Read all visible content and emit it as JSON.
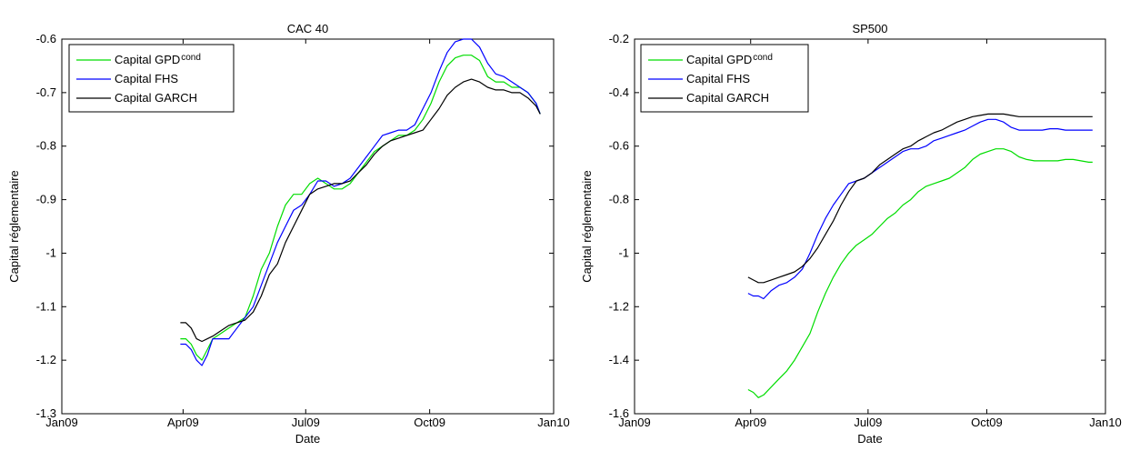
{
  "chart_data": [
    {
      "type": "line",
      "title": "CAC 40",
      "xlabel": "Date",
      "ylabel": "Capital réglementaire",
      "xlim": [
        0,
        365
      ],
      "ylim": [
        -1.3,
        -0.6
      ],
      "x_ticks": [
        {
          "value": 0,
          "label": "Jan09"
        },
        {
          "value": 90,
          "label": "Apr09"
        },
        {
          "value": 181,
          "label": "Jul09"
        },
        {
          "value": 273,
          "label": "Oct09"
        },
        {
          "value": 365,
          "label": "Jan10"
        }
      ],
      "y_ticks": [
        {
          "value": -0.6,
          "label": "-0.6"
        },
        {
          "value": -0.7,
          "label": "-0.7"
        },
        {
          "value": -0.8,
          "label": "-0.8"
        },
        {
          "value": -0.9,
          "label": "-0.9"
        },
        {
          "value": -1.0,
          "label": "-1"
        },
        {
          "value": -1.1,
          "label": "-1.1"
        },
        {
          "value": -1.2,
          "label": "-1.2"
        },
        {
          "value": -1.3,
          "label": "-1.3"
        }
      ],
      "legend": {
        "placement": "top-left"
      },
      "series": [
        {
          "name": "Capital GPD",
          "name_sup": "cond",
          "color": "#00dd00",
          "x": [
            88,
            92,
            96,
            100,
            104,
            108,
            112,
            118,
            124,
            130,
            136,
            142,
            148,
            154,
            160,
            166,
            172,
            178,
            184,
            190,
            196,
            202,
            208,
            214,
            220,
            226,
            232,
            238,
            244,
            250,
            256,
            262,
            268,
            274,
            280,
            286,
            292,
            298,
            304,
            310,
            316,
            322,
            328,
            334,
            340,
            346,
            352,
            355
          ],
          "y": [
            -1.16,
            -1.16,
            -1.17,
            -1.19,
            -1.2,
            -1.18,
            -1.16,
            -1.15,
            -1.14,
            -1.13,
            -1.12,
            -1.08,
            -1.03,
            -1.0,
            -0.95,
            -0.91,
            -0.89,
            -0.89,
            -0.87,
            -0.86,
            -0.87,
            -0.88,
            -0.88,
            -0.87,
            -0.85,
            -0.83,
            -0.81,
            -0.8,
            -0.79,
            -0.78,
            -0.78,
            -0.77,
            -0.75,
            -0.72,
            -0.68,
            -0.65,
            -0.635,
            -0.63,
            -0.63,
            -0.64,
            -0.67,
            -0.68,
            -0.68,
            -0.69,
            -0.69,
            -0.7,
            -0.72,
            -0.74
          ]
        },
        {
          "name": "Capital FHS",
          "color": "#0000ff",
          "x": [
            88,
            92,
            96,
            100,
            104,
            108,
            112,
            118,
            124,
            130,
            136,
            142,
            148,
            154,
            160,
            166,
            172,
            178,
            184,
            190,
            196,
            202,
            208,
            214,
            220,
            226,
            232,
            238,
            244,
            250,
            256,
            262,
            268,
            274,
            280,
            286,
            292,
            298,
            304,
            310,
            316,
            322,
            328,
            334,
            340,
            346,
            352,
            355
          ],
          "y": [
            -1.17,
            -1.17,
            -1.18,
            -1.2,
            -1.21,
            -1.19,
            -1.16,
            -1.16,
            -1.16,
            -1.14,
            -1.12,
            -1.1,
            -1.06,
            -1.02,
            -0.98,
            -0.95,
            -0.92,
            -0.91,
            -0.89,
            -0.865,
            -0.865,
            -0.875,
            -0.87,
            -0.86,
            -0.84,
            -0.82,
            -0.8,
            -0.78,
            -0.775,
            -0.77,
            -0.77,
            -0.76,
            -0.73,
            -0.7,
            -0.66,
            -0.625,
            -0.605,
            -0.6,
            -0.6,
            -0.615,
            -0.645,
            -0.665,
            -0.67,
            -0.68,
            -0.69,
            -0.7,
            -0.72,
            -0.74
          ]
        },
        {
          "name": "Capital GARCH",
          "color": "#000000",
          "x": [
            88,
            92,
            96,
            100,
            104,
            108,
            112,
            118,
            124,
            130,
            136,
            142,
            148,
            154,
            160,
            166,
            172,
            178,
            184,
            190,
            196,
            202,
            208,
            214,
            220,
            226,
            232,
            238,
            244,
            250,
            256,
            262,
            268,
            274,
            280,
            286,
            292,
            298,
            304,
            310,
            316,
            322,
            328,
            334,
            340,
            346,
            352,
            355
          ],
          "y": [
            -1.13,
            -1.13,
            -1.14,
            -1.16,
            -1.165,
            -1.16,
            -1.155,
            -1.145,
            -1.135,
            -1.13,
            -1.125,
            -1.11,
            -1.08,
            -1.04,
            -1.02,
            -0.98,
            -0.95,
            -0.92,
            -0.89,
            -0.88,
            -0.875,
            -0.87,
            -0.87,
            -0.865,
            -0.85,
            -0.835,
            -0.815,
            -0.8,
            -0.79,
            -0.785,
            -0.78,
            -0.775,
            -0.77,
            -0.75,
            -0.73,
            -0.705,
            -0.69,
            -0.68,
            -0.675,
            -0.68,
            -0.69,
            -0.695,
            -0.695,
            -0.7,
            -0.7,
            -0.71,
            -0.725,
            -0.74
          ]
        }
      ]
    },
    {
      "type": "line",
      "title": "SP500",
      "xlabel": "Date",
      "ylabel": "Capital réglementaire",
      "xlim": [
        0,
        365
      ],
      "ylim": [
        -1.6,
        -0.2
      ],
      "x_ticks": [
        {
          "value": 0,
          "label": "Jan09"
        },
        {
          "value": 90,
          "label": "Apr09"
        },
        {
          "value": 181,
          "label": "Jul09"
        },
        {
          "value": 273,
          "label": "Oct09"
        },
        {
          "value": 365,
          "label": "Jan10"
        }
      ],
      "y_ticks": [
        {
          "value": -0.2,
          "label": "-0.2"
        },
        {
          "value": -0.4,
          "label": "-0.4"
        },
        {
          "value": -0.6,
          "label": "-0.6"
        },
        {
          "value": -0.8,
          "label": "-0.8"
        },
        {
          "value": -1.0,
          "label": "-1"
        },
        {
          "value": -1.2,
          "label": "-1.2"
        },
        {
          "value": -1.4,
          "label": "-1.4"
        },
        {
          "value": -1.6,
          "label": "-1.6"
        }
      ],
      "legend": {
        "placement": "top-left"
      },
      "series": [
        {
          "name": "Capital GPD",
          "name_sup": "cond",
          "color": "#00dd00",
          "x": [
            88,
            92,
            96,
            100,
            106,
            112,
            118,
            124,
            130,
            136,
            142,
            148,
            154,
            160,
            166,
            172,
            178,
            184,
            190,
            196,
            202,
            208,
            214,
            220,
            226,
            232,
            238,
            244,
            250,
            256,
            262,
            268,
            274,
            280,
            286,
            292,
            298,
            304,
            310,
            316,
            322,
            328,
            334,
            340,
            346,
            352,
            355
          ],
          "y": [
            -1.51,
            -1.52,
            -1.54,
            -1.53,
            -1.5,
            -1.47,
            -1.44,
            -1.4,
            -1.35,
            -1.3,
            -1.22,
            -1.15,
            -1.09,
            -1.04,
            -1.0,
            -0.97,
            -0.95,
            -0.93,
            -0.9,
            -0.87,
            -0.85,
            -0.82,
            -0.8,
            -0.77,
            -0.75,
            -0.74,
            -0.73,
            -0.72,
            -0.7,
            -0.68,
            -0.65,
            -0.63,
            -0.62,
            -0.61,
            -0.61,
            -0.62,
            -0.64,
            -0.65,
            -0.655,
            -0.655,
            -0.655,
            -0.655,
            -0.65,
            -0.65,
            -0.655,
            -0.66,
            -0.66
          ]
        },
        {
          "name": "Capital FHS",
          "color": "#0000ff",
          "x": [
            88,
            92,
            96,
            100,
            106,
            112,
            118,
            124,
            130,
            136,
            142,
            148,
            154,
            160,
            166,
            172,
            178,
            184,
            190,
            196,
            202,
            208,
            214,
            220,
            226,
            232,
            238,
            244,
            250,
            256,
            262,
            268,
            274,
            280,
            286,
            292,
            298,
            304,
            310,
            316,
            322,
            328,
            334,
            340,
            346,
            352,
            355
          ],
          "y": [
            -1.15,
            -1.16,
            -1.16,
            -1.17,
            -1.14,
            -1.12,
            -1.11,
            -1.09,
            -1.06,
            -1.0,
            -0.93,
            -0.87,
            -0.82,
            -0.78,
            -0.74,
            -0.73,
            -0.72,
            -0.7,
            -0.68,
            -0.66,
            -0.64,
            -0.62,
            -0.61,
            -0.61,
            -0.6,
            -0.58,
            -0.57,
            -0.56,
            -0.55,
            -0.54,
            -0.525,
            -0.51,
            -0.5,
            -0.5,
            -0.51,
            -0.53,
            -0.54,
            -0.54,
            -0.54,
            -0.54,
            -0.535,
            -0.535,
            -0.54,
            -0.54,
            -0.54,
            -0.54,
            -0.54
          ]
        },
        {
          "name": "Capital GARCH",
          "color": "#000000",
          "x": [
            88,
            92,
            96,
            100,
            106,
            112,
            118,
            124,
            130,
            136,
            142,
            148,
            154,
            160,
            166,
            172,
            178,
            184,
            190,
            196,
            202,
            208,
            214,
            220,
            226,
            232,
            238,
            244,
            250,
            256,
            262,
            268,
            274,
            280,
            286,
            292,
            298,
            304,
            310,
            316,
            322,
            328,
            334,
            340,
            346,
            352,
            355
          ],
          "y": [
            -1.09,
            -1.1,
            -1.11,
            -1.11,
            -1.1,
            -1.09,
            -1.08,
            -1.07,
            -1.05,
            -1.02,
            -0.98,
            -0.93,
            -0.88,
            -0.82,
            -0.77,
            -0.73,
            -0.72,
            -0.7,
            -0.67,
            -0.65,
            -0.63,
            -0.61,
            -0.6,
            -0.58,
            -0.565,
            -0.55,
            -0.54,
            -0.525,
            -0.51,
            -0.5,
            -0.49,
            -0.485,
            -0.48,
            -0.48,
            -0.48,
            -0.485,
            -0.49,
            -0.49,
            -0.49,
            -0.49,
            -0.49,
            -0.49,
            -0.49,
            -0.49,
            -0.49,
            -0.49,
            -0.49
          ]
        }
      ]
    }
  ]
}
